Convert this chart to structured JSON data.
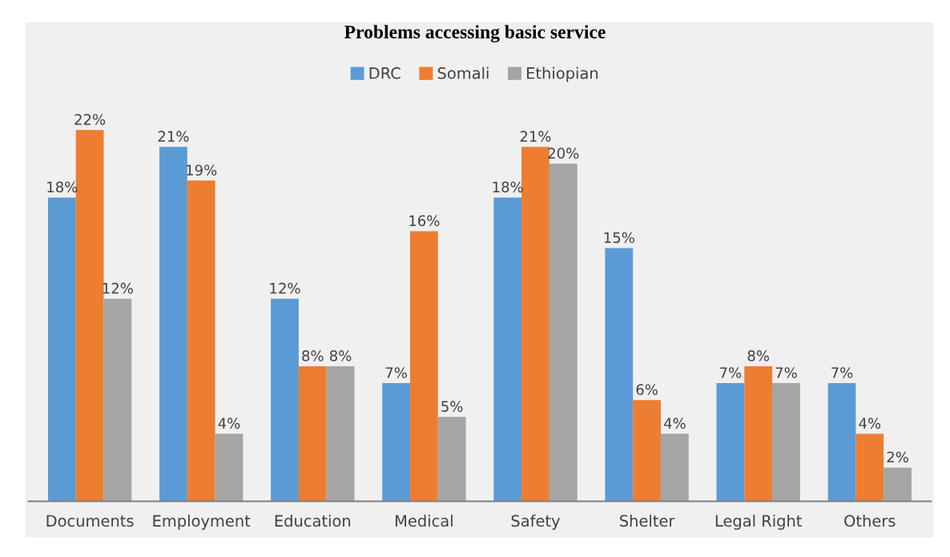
{
  "chart_data": {
    "type": "bar",
    "title": "Problems accessing basic service",
    "categories": [
      "Documents",
      "Employment",
      "Education",
      "Medical",
      "Safety",
      "Shelter",
      "Legal Right",
      "Others"
    ],
    "series": [
      {
        "name": "DRC",
        "color": "#5b9bd5",
        "values": [
          18,
          21,
          12,
          7,
          18,
          15,
          7,
          7
        ],
        "value_labels": [
          "18%",
          "21%",
          "12%",
          "7%",
          "18%",
          "15%",
          "7%",
          "7%"
        ]
      },
      {
        "name": "Somali",
        "color": "#ed7d31",
        "values": [
          22,
          19,
          8,
          16,
          21,
          6,
          8,
          4
        ],
        "value_labels": [
          "22%",
          "19%",
          "8%",
          "16%",
          "21%",
          "6%",
          "8%",
          "4%"
        ]
      },
      {
        "name": "Ethiopian",
        "color": "#a5a5a5",
        "values": [
          12,
          4,
          8,
          5,
          20,
          4,
          7,
          2
        ],
        "value_labels": [
          "12%",
          "4%",
          "8%",
          "5%",
          "20%",
          "4%",
          "7%",
          "2%"
        ]
      }
    ],
    "legend": "top",
    "grid": false
  }
}
